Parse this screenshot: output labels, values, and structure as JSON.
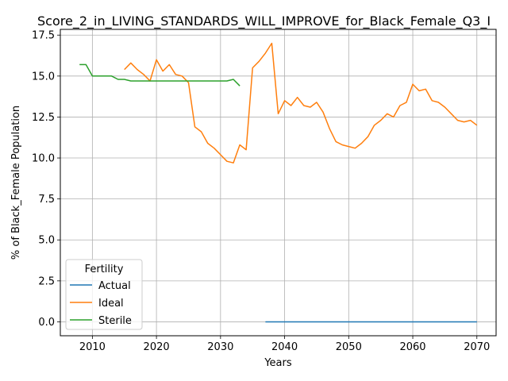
{
  "chart_data": {
    "type": "line",
    "title": "Score_2_in_LIVING_STANDARDS_WILL_IMPROVE_for_Black_Female_Q3_I",
    "xlabel": "Years",
    "ylabel": "% of Black_Female Population",
    "xlim": [
      2005,
      2073
    ],
    "ylim": [
      -0.85,
      17.85
    ],
    "xticks": [
      2010,
      2020,
      2030,
      2040,
      2050,
      2060,
      2070
    ],
    "yticks": [
      0.0,
      2.5,
      5.0,
      7.5,
      10.0,
      12.5,
      15.0,
      17.5
    ],
    "xtick_labels": [
      "2010",
      "2020",
      "2030",
      "2040",
      "2050",
      "2060",
      "2070"
    ],
    "ytick_labels": [
      "0.0",
      "2.5",
      "5.0",
      "7.5",
      "10.0",
      "12.5",
      "15.0",
      "17.5"
    ],
    "grid": true,
    "legend": {
      "title": "Fertility",
      "placement": "lower-left"
    },
    "series": [
      {
        "name": "Actual",
        "color": "#1f77b4",
        "x": [
          2037,
          2038,
          2039,
          2040,
          2041,
          2042,
          2043,
          2044,
          2045,
          2046,
          2047,
          2048,
          2049,
          2050,
          2051,
          2052,
          2053,
          2054,
          2055,
          2056,
          2057,
          2058,
          2059,
          2060,
          2061,
          2062,
          2063,
          2064,
          2065,
          2066,
          2067,
          2068,
          2069,
          2070
        ],
        "y": [
          0,
          0,
          0,
          0,
          0,
          0,
          0,
          0,
          0,
          0,
          0,
          0,
          0,
          0,
          0,
          0,
          0,
          0,
          0,
          0,
          0,
          0,
          0,
          0,
          0,
          0,
          0,
          0,
          0,
          0,
          0,
          0,
          0,
          0
        ]
      },
      {
        "name": "Ideal",
        "color": "#ff7f0e",
        "x": [
          2015,
          2016,
          2017,
          2018,
          2019,
          2020,
          2021,
          2022,
          2023,
          2024,
          2025,
          2026,
          2027,
          2028,
          2029,
          2030,
          2031,
          2032,
          2033,
          2034,
          2035,
          2036,
          2037,
          2038,
          2039,
          2040,
          2041,
          2042,
          2043,
          2044,
          2045,
          2046,
          2047,
          2048,
          2049,
          2050,
          2051,
          2052,
          2053,
          2054,
          2055,
          2056,
          2057,
          2058,
          2059,
          2060,
          2061,
          2062,
          2063,
          2064,
          2065,
          2066,
          2067,
          2068,
          2069,
          2070
        ],
        "y": [
          15.4,
          15.8,
          15.4,
          15.1,
          14.7,
          16.0,
          15.3,
          15.7,
          15.1,
          15.0,
          14.6,
          11.9,
          11.6,
          10.9,
          10.6,
          10.2,
          9.8,
          9.7,
          10.8,
          10.5,
          15.5,
          15.9,
          16.4,
          17.0,
          12.7,
          13.5,
          13.2,
          13.7,
          13.2,
          13.1,
          13.4,
          12.8,
          11.8,
          11.0,
          10.8,
          10.7,
          10.6,
          10.9,
          11.3,
          12.0,
          12.3,
          12.7,
          12.5,
          13.2,
          13.4,
          14.5,
          14.1,
          14.2,
          13.5,
          13.4,
          13.1,
          12.7,
          12.3,
          12.2,
          12.3,
          12.0
        ]
      },
      {
        "name": "Sterile",
        "color": "#2ca02c",
        "x": [
          2008,
          2009,
          2010,
          2011,
          2012,
          2013,
          2014,
          2015,
          2016,
          2017,
          2018,
          2019,
          2020,
          2021,
          2022,
          2023,
          2024,
          2025,
          2026,
          2027,
          2028,
          2029,
          2030,
          2031,
          2032,
          2033
        ],
        "y": [
          15.7,
          15.7,
          15.0,
          15.0,
          15.0,
          15.0,
          14.8,
          14.8,
          14.7,
          14.7,
          14.7,
          14.7,
          14.7,
          14.7,
          14.7,
          14.7,
          14.7,
          14.7,
          14.7,
          14.7,
          14.7,
          14.7,
          14.7,
          14.7,
          14.8,
          14.4
        ]
      }
    ]
  }
}
